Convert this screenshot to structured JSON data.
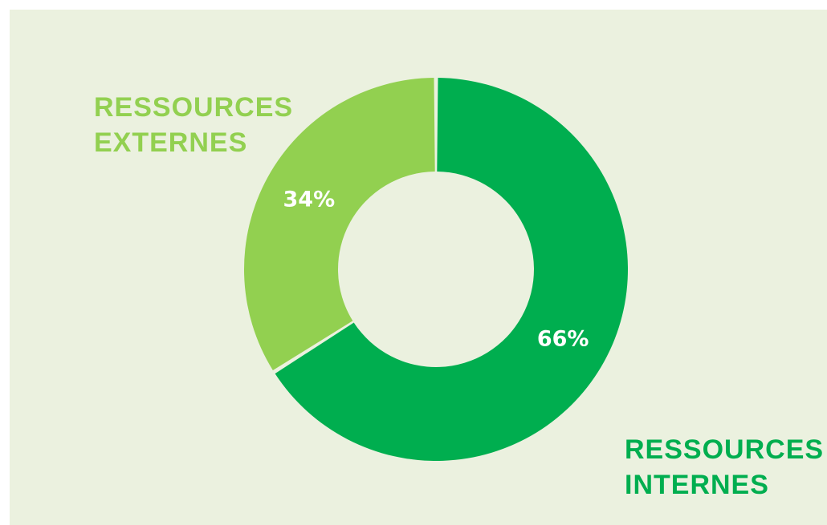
{
  "chart_data": {
    "type": "pie",
    "variant": "donut",
    "categories": [
      "RESSOURCES INTERNES",
      "RESSOURCES EXTERNES"
    ],
    "values": [
      66,
      34
    ],
    "value_labels": [
      "66%",
      "34%"
    ],
    "colors": [
      "#00ae4f",
      "#92d050"
    ],
    "background": "#ebf1df",
    "title": "",
    "labels": {
      "internes": [
        "RESSOURCES",
        "INTERNES"
      ],
      "externes": [
        "RESSOURCES",
        "EXTERNES"
      ]
    }
  }
}
